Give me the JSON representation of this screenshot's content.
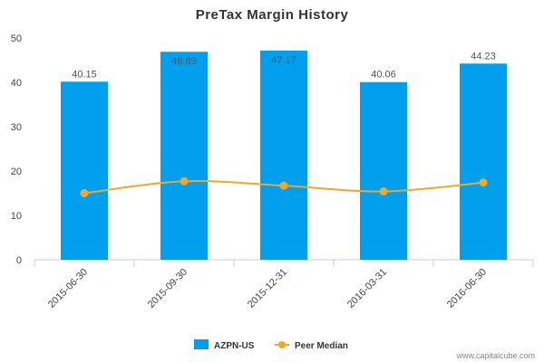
{
  "chart_data": {
    "type": "bar",
    "title": "PreTax Margin History",
    "categories": [
      "2015-06-30",
      "2015-09-30",
      "2015-12-31",
      "2016-03-31",
      "2016-06-30"
    ],
    "series": [
      {
        "name": "AZPN-US",
        "type": "bar",
        "values": [
          40.15,
          46.89,
          47.17,
          40.06,
          44.23
        ],
        "labels": [
          "40.15",
          "46.89",
          "47.17",
          "40.06",
          "44.23"
        ],
        "color": "#00a0ee"
      },
      {
        "name": "Peer Median",
        "type": "line",
        "values": [
          15.0,
          17.7,
          16.7,
          15.4,
          17.4
        ],
        "color": "#f5a623"
      }
    ],
    "ylim": [
      0,
      50
    ],
    "yticks": [
      "0",
      "10",
      "20",
      "30",
      "40",
      "50"
    ],
    "grid": false,
    "legend": "bottom-center"
  },
  "credit": "www.capitalcube.com"
}
